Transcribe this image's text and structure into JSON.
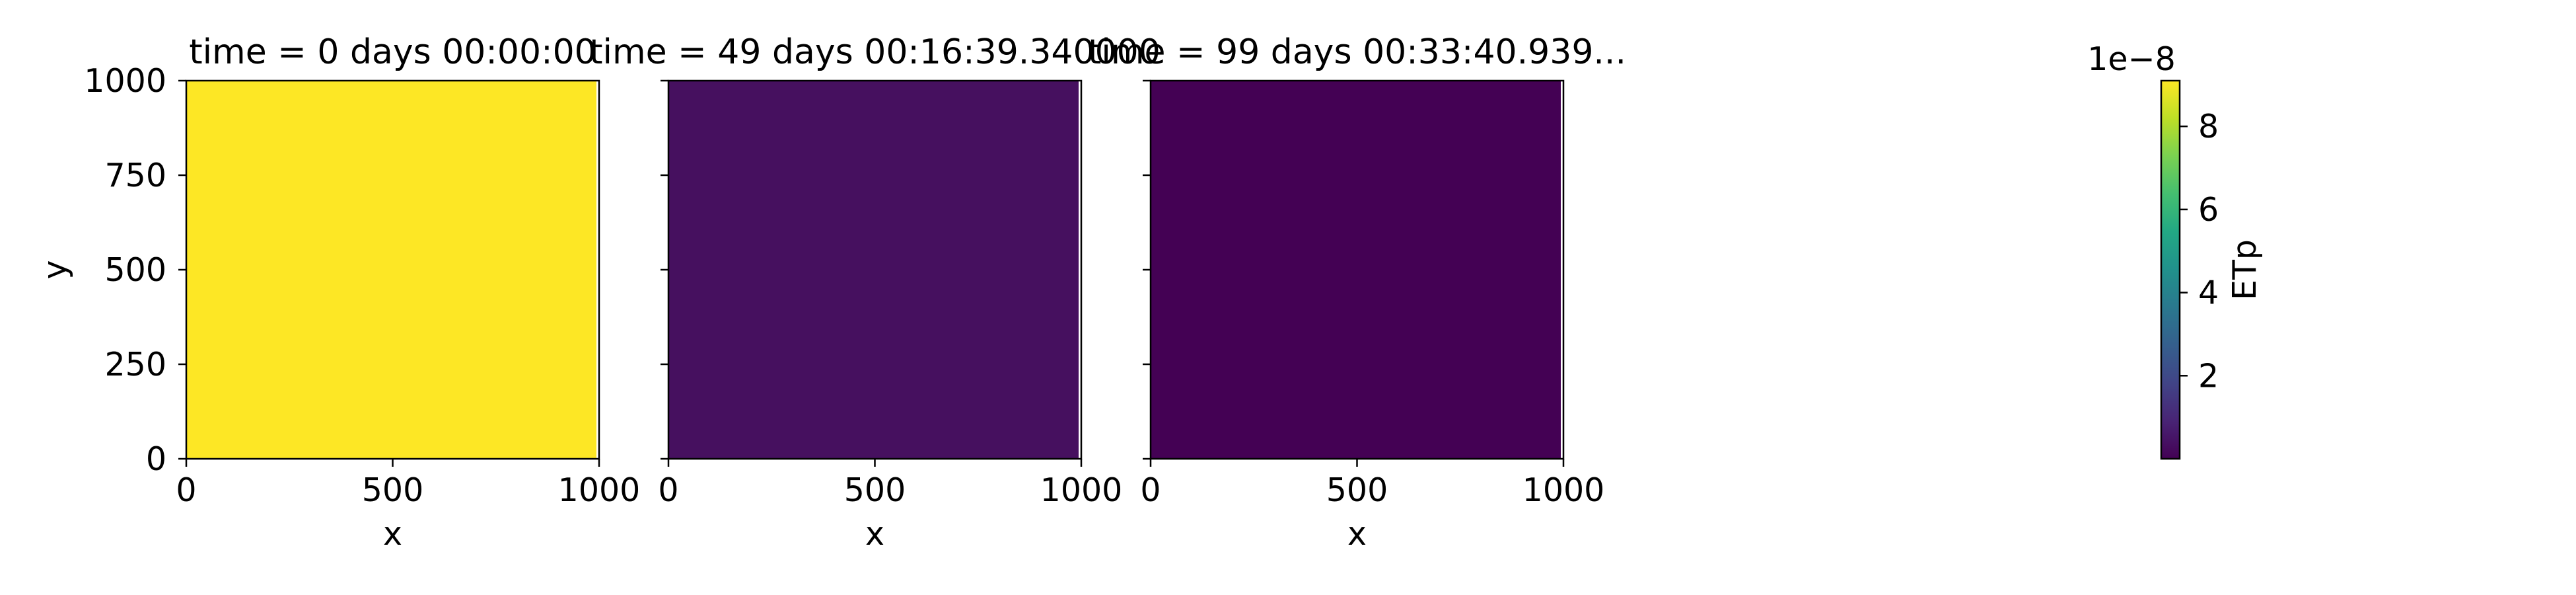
{
  "chart_data": {
    "type": "heatmap",
    "x_range": [
      0,
      1000
    ],
    "y_range": [
      0,
      1000
    ],
    "x_ticks": [
      0,
      500,
      1000
    ],
    "y_ticks": [
      0,
      250,
      500,
      750,
      1000
    ],
    "xlabel": "x",
    "ylabel": "y",
    "colormap": "viridis",
    "panels": [
      {
        "title": "time = 0 days 00:00:00",
        "value": 9.1e-08,
        "color": "#fde725"
      },
      {
        "title": "time = 49 days 00:16:39.340000",
        "value": 6e-09,
        "color": "#46105f"
      },
      {
        "title": "time = 99 days 00:33:40.939...",
        "value": 4e-10,
        "color": "#440154"
      }
    ],
    "colorbar": {
      "label": "ETp",
      "offset_text": "1e−8",
      "range": [
        0,
        9.1
      ],
      "ticks": [
        2,
        4,
        6,
        8
      ]
    }
  }
}
